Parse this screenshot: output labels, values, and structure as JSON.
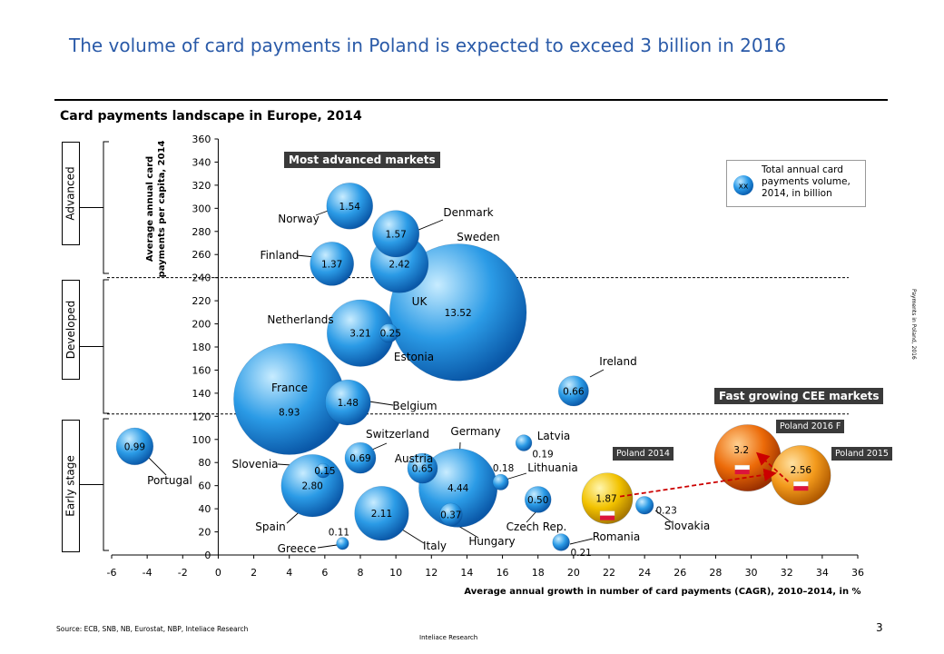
{
  "page": {
    "title": "The volume of card payments in Poland is expected to exceed 3 billion in 2016",
    "subtitle": "Card payments landscape in Europe, 2014",
    "source": "Source:  ECB, SNB, NB, Eurostat, NBP, Inteliace  Research",
    "footer_center": "Inteliace Research",
    "page_number": "3",
    "side_note": "Payments in Poland,  2016"
  },
  "stages": [
    {
      "label": "Advanced"
    },
    {
      "label": "Developed"
    },
    {
      "label": "Early stage"
    }
  ],
  "annotations": {
    "most_advanced": "Most advanced markets",
    "fast_growing": "Fast growing CEE markets",
    "poland_2014": "Poland 2014",
    "poland_2015": "Poland 2015",
    "poland_2016f": "Poland 2016 F"
  },
  "legend": {
    "symbol": "xx",
    "text": "Total annual card payments volume, 2014, in billion"
  },
  "colors": {
    "title": "#2a5aa8",
    "bubble_blue": "#1e8fe0",
    "poland_2014": "#f0c000",
    "poland_2015": "#f08a10",
    "poland_2016": "#e05a00",
    "arrow": "#cc0000"
  },
  "chart_data": {
    "type": "bubble",
    "xlabel": "Average annual growth  in number of card payments  (CAGR), 2010–2014, in %",
    "ylabel": "Average annual card payments per capita, 2014",
    "xlim": [
      -6,
      36
    ],
    "ylim": [
      0,
      360
    ],
    "x_ticks": [
      -6,
      -4,
      -2,
      0,
      2,
      4,
      6,
      8,
      10,
      12,
      14,
      16,
      18,
      20,
      22,
      24,
      26,
      28,
      30,
      32,
      34,
      36
    ],
    "y_ticks": [
      0,
      20,
      40,
      60,
      80,
      100,
      120,
      140,
      160,
      180,
      200,
      220,
      240,
      260,
      280,
      300,
      320,
      340,
      360
    ],
    "thresholds": [
      240,
      122
    ],
    "points": [
      {
        "name": "UK",
        "x": 13.5,
        "y": 210,
        "size": 13.52,
        "label": "13.52",
        "kind": "blue"
      },
      {
        "name": "France",
        "x": 4,
        "y": 135,
        "size": 8.93,
        "label": "8.93",
        "kind": "blue"
      },
      {
        "name": "Germany",
        "x": 13.5,
        "y": 58,
        "size": 4.44,
        "label": "4.44",
        "kind": "blue"
      },
      {
        "name": "Netherlands",
        "x": 8,
        "y": 192,
        "size": 3.21,
        "label": "3.21",
        "kind": "blue"
      },
      {
        "name": "Spain",
        "x": 5.3,
        "y": 60,
        "size": 2.8,
        "label": "2.80",
        "kind": "blue"
      },
      {
        "name": "Sweden",
        "x": 10.2,
        "y": 252,
        "size": 2.42,
        "label": "2.42",
        "kind": "blue"
      },
      {
        "name": "Italy",
        "x": 9.2,
        "y": 36,
        "size": 2.11,
        "label": "2.11",
        "kind": "blue"
      },
      {
        "name": "Denmark",
        "x": 10,
        "y": 278,
        "size": 1.57,
        "label": "1.57",
        "kind": "blue"
      },
      {
        "name": "Norway",
        "x": 7.4,
        "y": 302,
        "size": 1.54,
        "label": "1.54",
        "kind": "blue"
      },
      {
        "name": "Belgium",
        "x": 7.3,
        "y": 132,
        "size": 1.48,
        "label": "1.48",
        "kind": "blue"
      },
      {
        "name": "Finland",
        "x": 6.4,
        "y": 252,
        "size": 1.37,
        "label": "1.37",
        "kind": "blue"
      },
      {
        "name": "Portugal",
        "x": -4.7,
        "y": 94,
        "size": 0.99,
        "label": "0.99",
        "kind": "blue"
      },
      {
        "name": "Switzerland",
        "x": 8,
        "y": 84,
        "size": 0.69,
        "label": "0.69",
        "kind": "blue"
      },
      {
        "name": "Ireland",
        "x": 20,
        "y": 142,
        "size": 0.66,
        "label": "0.66",
        "kind": "blue"
      },
      {
        "name": "Austria",
        "x": 11.5,
        "y": 75,
        "size": 0.65,
        "label": "0.65",
        "kind": "blue"
      },
      {
        "name": "Czech Rep.",
        "x": 18,
        "y": 48,
        "size": 0.5,
        "label": "0.50",
        "kind": "blue"
      },
      {
        "name": "Hungary",
        "x": 13.1,
        "y": 35,
        "size": 0.37,
        "label": "0.37",
        "kind": "blue"
      },
      {
        "name": "Estonia",
        "x": 9.6,
        "y": 192,
        "size": 0.25,
        "label": "0.25",
        "kind": "blue"
      },
      {
        "name": "Slovakia",
        "x": 24,
        "y": 43,
        "size": 0.23,
        "label": "0.23",
        "kind": "blue"
      },
      {
        "name": "Romania",
        "x": 19.3,
        "y": 11,
        "size": 0.21,
        "label": "0.21",
        "kind": "blue"
      },
      {
        "name": "Latvia",
        "x": 17.2,
        "y": 97,
        "size": 0.19,
        "label": "0.19",
        "kind": "blue"
      },
      {
        "name": "Lithuania",
        "x": 15.9,
        "y": 63,
        "size": 0.18,
        "label": "0.18",
        "kind": "blue"
      },
      {
        "name": "Slovenia",
        "x": 5.9,
        "y": 73,
        "size": 0.15,
        "label": "0.15",
        "kind": "blue"
      },
      {
        "name": "Greece",
        "x": 7,
        "y": 10,
        "size": 0.11,
        "label": "0.11",
        "kind": "blue"
      },
      {
        "name": "Poland 2014",
        "x": 21.9,
        "y": 49,
        "size": 1.87,
        "label": "1.87",
        "kind": "poland_2014"
      },
      {
        "name": "Poland 2016 F",
        "x": 29.8,
        "y": 84,
        "size": 3.2,
        "label": "3.2",
        "kind": "poland_2016"
      },
      {
        "name": "Poland 2015",
        "x": 32.8,
        "y": 69,
        "size": 2.56,
        "label": "2.56",
        "kind": "poland_2015"
      }
    ]
  }
}
